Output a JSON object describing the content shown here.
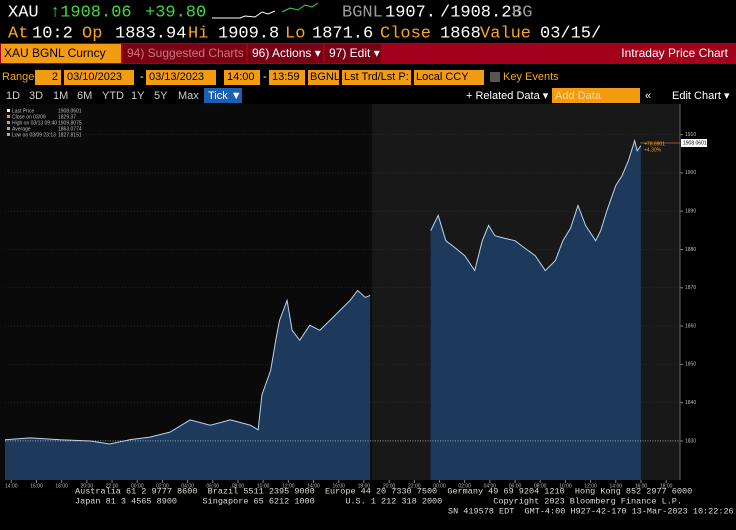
{
  "quote": {
    "ticker": "XAU",
    "last": "↑1908.06",
    "change": "+39.80",
    "source": "BGNL",
    "bid": "1907.",
    "ask": "/1908.23",
    "ask_source": "BG",
    "at_label": "At",
    "at": "10:2",
    "open_label": "Op",
    "open": "1883.94",
    "high_label": "Hi",
    "high": "1909.8",
    "low_label": "Lo",
    "low": "1871.6",
    "close_label": "Close",
    "close": "1868",
    "value_label": "Value",
    "value": "03/15/"
  },
  "menu": {
    "security": "XAU BGNL Curncy",
    "suggested": "94) Suggested Charts",
    "actions": "96) Actions ▾",
    "edit": "97) Edit ▾",
    "title": "Intraday Price Chart"
  },
  "range_bar": {
    "range_label": "Range",
    "period": "2",
    "start_date": "03/10/2023",
    "dash1": "-",
    "end_date": "03/13/2023",
    "start_time": "14:00",
    "dash2": "-",
    "end_time": "13:59",
    "source": "BGNL",
    "field": "Lst Trd/Lst P:",
    "currency": "Local CCY",
    "events": "Key Events"
  },
  "period_bar": {
    "buttons": [
      "1D",
      "3D",
      "1M",
      "6M",
      "YTD",
      "1Y",
      "5Y",
      "Max"
    ],
    "tick": "Tick ▼",
    "related": "+ Related Data ▾",
    "add_data": "Add Data",
    "collapse": "«",
    "edit_chart": "Edit Chart ▾"
  },
  "chart_data": {
    "type": "area",
    "legend_lines": [
      {
        "label": "Last Price",
        "value": "1908.0601"
      },
      {
        "label": "Close on 03/09",
        "value": "1829.37"
      },
      {
        "label": "High on 03/13 09:40",
        "value": "1909.8075"
      },
      {
        "label": "Average",
        "value": "1863.0774"
      },
      {
        "label": "Low on 03/09 23:13",
        "value": "1827.8151"
      }
    ],
    "last_tag": "1908.0601",
    "change_tag": "+78.6901",
    "change_pct_tag": "+4.30%",
    "x": [
      0,
      2,
      4.4,
      6.8,
      8.3,
      9.9,
      11.5,
      13.1,
      14.7,
      16.3,
      17.9,
      19.5,
      20.1,
      20.4,
      21.1,
      21.5,
      21.8,
      22.4,
      22.8,
      23.4,
      24.2,
      25,
      25.8,
      26.6,
      27.4,
      28,
      28.6,
      29,
      32,
      33.8,
      34.4,
      35,
      35.8,
      36.5,
      37.3,
      37.9,
      38.4,
      38.9,
      39.7,
      40.5,
      41.3,
      42.1,
      42.9,
      43.7,
      44.3,
      44.9,
      45.5,
      46.1,
      46.9,
      47.3,
      47.8,
      48.5,
      49,
      49.5,
      50,
      50.2,
      50.5
    ],
    "series": [
      {
        "name": "Last Price",
        "color": "#b9d3ee",
        "fill": "#1d3a5c",
        "values": [
          1830.3,
          1830.8,
          1830.3,
          1830,
          1829.2,
          1830.3,
          1831,
          1832.3,
          1835.5,
          1834.1,
          1835.5,
          1834.1,
          1832.9,
          1842,
          1848.5,
          1856.3,
          1861.5,
          1866.7,
          1858.9,
          1856.3,
          1860.2,
          1858.9,
          1861.5,
          1864.1,
          1866.7,
          1869.3,
          1867.5,
          1868,
          null,
          1884.9,
          1888.9,
          1882.3,
          1880.3,
          1878.4,
          1874.5,
          1882.3,
          1886.3,
          1883.6,
          1882.9,
          1882.3,
          1880.3,
          1878.4,
          1874.5,
          1877.1,
          1882.3,
          1885.5,
          1891.5,
          1886.3,
          1882.3,
          1884.9,
          1890.2,
          1896.7,
          1899.3,
          1903.2,
          1908.4,
          1905.8,
          1907.1
        ]
      }
    ],
    "xlim": [
      0,
      53.6
    ],
    "ylim": [
      1819.8,
      1918
    ],
    "yticks": [
      1830,
      1840,
      1850,
      1860,
      1870,
      1880,
      1890,
      1900,
      1910
    ],
    "xticks": [
      {
        "value": 0.5,
        "label": "14:00"
      },
      {
        "value": 2.5,
        "label": "16:00"
      },
      {
        "value": 4.5,
        "label": "18:00"
      },
      {
        "value": 6.5,
        "label": "20:00"
      },
      {
        "value": 8.5,
        "label": "22:00"
      },
      {
        "value": 10.5,
        "label": "00:00"
      },
      {
        "value": 12.5,
        "label": "02:00"
      },
      {
        "value": 14.5,
        "label": "04:00"
      },
      {
        "value": 16.5,
        "label": "06:00"
      },
      {
        "value": 18.5,
        "label": "08:00"
      },
      {
        "value": 20.5,
        "label": "10:00"
      },
      {
        "value": 22.5,
        "label": "12:00"
      },
      {
        "value": 24.5,
        "label": "14:00"
      },
      {
        "value": 26.5,
        "label": "16:00"
      },
      {
        "value": 28.5,
        "label": "18:00"
      },
      {
        "value": 30.5,
        "label": "20:00"
      },
      {
        "value": 32.5,
        "label": "22:00"
      },
      {
        "value": 34.5,
        "label": "00:00"
      },
      {
        "value": 36.5,
        "label": "02:00"
      },
      {
        "value": 38.5,
        "label": "04:00"
      },
      {
        "value": 40.5,
        "label": "06:00"
      },
      {
        "value": 42.5,
        "label": "08:00"
      },
      {
        "value": 44.5,
        "label": "10:00"
      },
      {
        "value": 46.5,
        "label": "12:00"
      },
      {
        "value": 48.5,
        "label": "14:00"
      },
      {
        "value": 50.5,
        "label": "16:00"
      },
      {
        "value": 52.5,
        "label": "18:00"
      }
    ],
    "grid": true,
    "y_axis_side": "right"
  },
  "footer": [
    "Australia 61 2 9777 8600  Brazil 5511 2395 9000  Europe 44 20 7330 7500  Germany 49 69 9204 1210  Hong Kong 852 2977 6000",
    "Japan 81 3 4565 8900     Singapore 65 6212 1000      U.S. 1 212 318 2000          Copyright 2023 Bloomberg Finance L.P.",
    "SN 419578 EDT  GMT-4:00 H927-42-170 13-Mar-2023 10:22:26"
  ]
}
